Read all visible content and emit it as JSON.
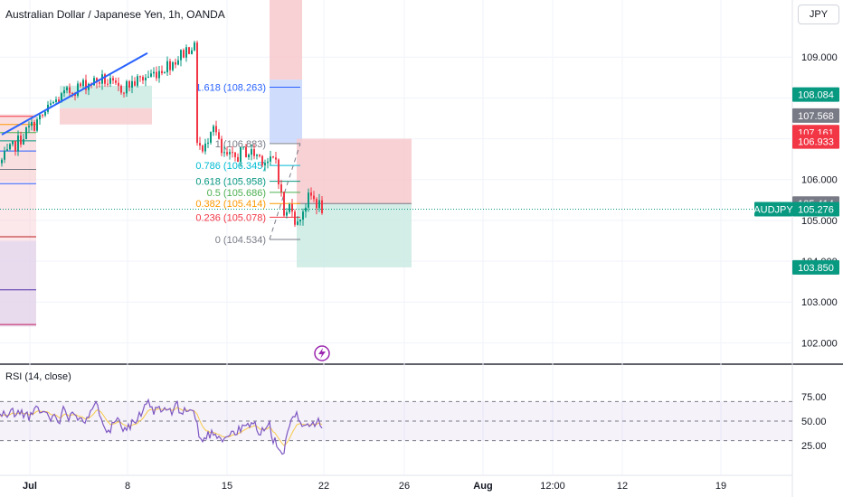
{
  "chart_data": {
    "type": "candlestick",
    "title": "Australian Dollar / Japanese Yen, 1h, OANDA",
    "symbol": "AUDJPY",
    "currency": "JPY",
    "last_price": "105.276",
    "x_ticks": [
      "Jul",
      "8",
      "15",
      "22",
      "26",
      "Aug",
      "12:00",
      "12",
      "19"
    ],
    "price_ticks": [
      "109.000",
      "108.000",
      "107.000",
      "106.000",
      "105.000",
      "104.000",
      "103.000",
      "102.000"
    ],
    "ylim": [
      101.5,
      110.4
    ],
    "price_badges": [
      {
        "label": "108.084",
        "value": 108.084,
        "bg": "#089981",
        "fg": "#ffffff"
      },
      {
        "label": "107.568",
        "value": 107.568,
        "bg": "#787b86",
        "fg": "#ffffff"
      },
      {
        "label": "107.161",
        "value": 107.161,
        "bg": "#f23645",
        "fg": "#ffffff"
      },
      {
        "label": "106.933",
        "value": 106.933,
        "bg": "#f23645",
        "fg": "#ffffff"
      },
      {
        "label": "105.414",
        "value": 105.414,
        "bg": "#787b86",
        "fg": "#ffffff"
      },
      {
        "label": "105.276",
        "value": 105.276,
        "bg": "#089981",
        "fg": "#ffffff"
      },
      {
        "label": "103.850",
        "value": 103.85,
        "bg": "#089981",
        "fg": "#ffffff"
      }
    ],
    "fib_levels": [
      {
        "label": "1.618 (108.263)",
        "value": 108.263,
        "color": "#2962ff"
      },
      {
        "label": "1 (106.883)",
        "value": 106.883,
        "color": "#787b86"
      },
      {
        "label": "0.786 (106.345)",
        "value": 106.345,
        "color": "#00bcd4"
      },
      {
        "label": "0.618 (105.958)",
        "value": 105.958,
        "color": "#089981"
      },
      {
        "label": "0.5 (105.686)",
        "value": 105.686,
        "color": "#4caf50"
      },
      {
        "label": "0.382 (105.414)",
        "value": 105.414,
        "color": "#ff9800"
      },
      {
        "label": "0.236 (105.078)",
        "value": 105.078,
        "color": "#f23645"
      },
      {
        "label": "0 (104.534)",
        "value": 104.534,
        "color": "#787b86"
      }
    ],
    "trendline": {
      "from": [
        2,
        107.1
      ],
      "to": [
        58,
        109.1
      ],
      "color": "#2962ff"
    },
    "rsi": {
      "title": "RSI (14, close)",
      "ticks": [
        "75.00",
        "50.00",
        "25.00"
      ],
      "ylim": [
        0,
        100
      ],
      "upper": 70,
      "middle": 50,
      "lower": 30
    }
  }
}
